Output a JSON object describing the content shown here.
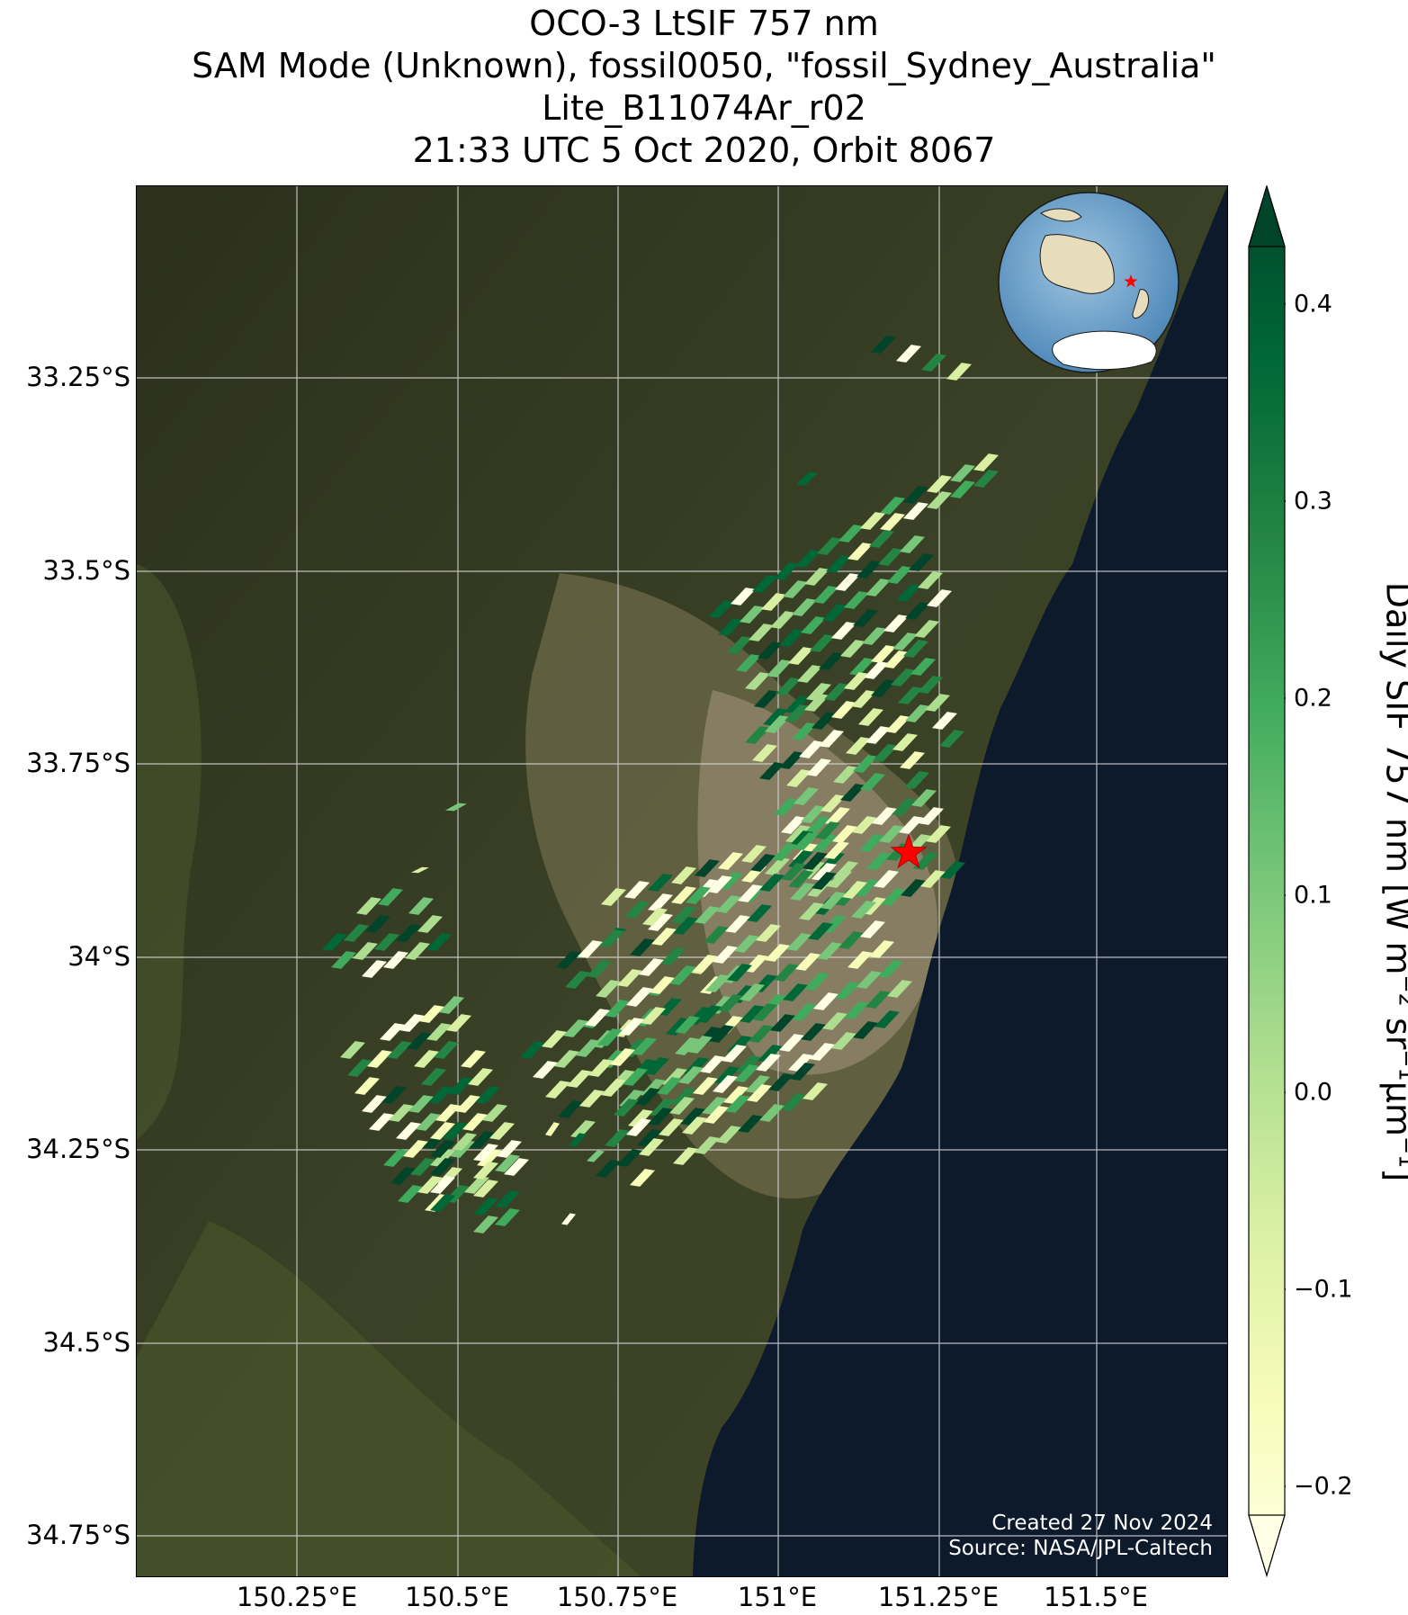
{
  "title": {
    "line1": "OCO-3 LtSIF 757 nm",
    "line2": "SAM Mode (Unknown), fossil0050, \"fossil_Sydney_Australia\"",
    "line3": "Lite_B11074Ar_r02",
    "line4": "21:33 UTC 5 Oct 2020, Orbit 8067"
  },
  "map": {
    "lat_labels": [
      "33.25°S",
      "33.5°S",
      "33.75°S",
      "34°S",
      "34.25°S",
      "34.5°S",
      "34.75°S"
    ],
    "lon_labels": [
      "150.25°E",
      "150.5°E",
      "150.75°E",
      "151°E",
      "151.25°E",
      "151.5°E"
    ],
    "target_marker": "red-star-icon",
    "inset": "globe-icon",
    "credit_line1": "Created 27 Nov 2024",
    "credit_line2": "Source: NASA/JPL-Caltech"
  },
  "colorbar": {
    "label_main": "Daily SIF 757 nm [W m",
    "label_sup1": "−2",
    "label_mid": " sr",
    "label_sup2": "−1",
    "label_mu": "μm",
    "label_sup3": "−1",
    "label_end": "]",
    "ticks": [
      "0.4",
      "0.3",
      "0.2",
      "0.1",
      "0.0",
      "−0.1",
      "−0.2"
    ],
    "colormap": [
      "#ffffe5",
      "#f7fcb9",
      "#d9f0a3",
      "#addd8e",
      "#78c679",
      "#41ab5d",
      "#238443",
      "#006837",
      "#004529"
    ],
    "range": [
      -0.2,
      0.4
    ],
    "extend": "both"
  },
  "colors": {
    "land_dark": "#2f3320",
    "land_mid": "#4a5230",
    "urban": "#8d8268",
    "ocean": "#0c1a2c",
    "gridline": "#d8d8d8",
    "marker": "#ff0000"
  }
}
